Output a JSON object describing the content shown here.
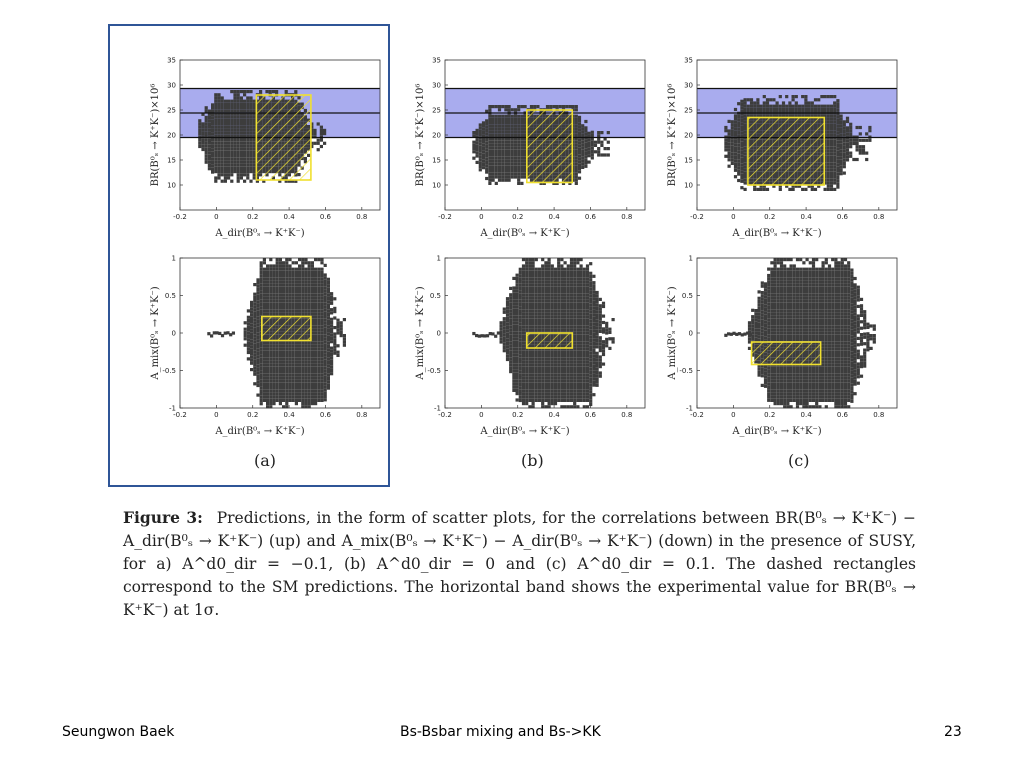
{
  "figure": {
    "caption_label": "Figure 3:",
    "caption_text": "Predictions, in the form of scatter plots, for the correlations between BR(B⁰ₛ → K⁺K⁻) − A_dir(B⁰ₛ → K⁺K⁻) (up) and A_mix(B⁰ₛ → K⁺K⁻) − A_dir(B⁰ₛ → K⁺K⁻) (down) in the presence of SUSY, for a) A^d0_dir = −0.1, (b) A^d0_dir = 0 and (c) A^d0_dir = 0.1. The dashed rectangles correspond to the SM predictions. The horizontal band shows the experimental value for BR(B⁰ₛ → K⁺K⁻) at 1σ.",
    "subfigure_labels": [
      "(a)",
      "(b)",
      "(c)"
    ]
  },
  "footer": {
    "author": "Seungwon Baek",
    "title": "Bs-Bsbar mixing and Bs->KK",
    "page": "23"
  },
  "colors": {
    "scatter": "#3d3d3d",
    "band": "#a9acee",
    "sm_rect": "#f0e030",
    "highlight_border": "#2f5597"
  },
  "chart_data": [
    {
      "type": "scatter",
      "panel": "a-top",
      "xlabel": "A_dir(B⁰ₛ → K⁺K⁻)",
      "ylabel": "BR(B⁰ₛ → K⁺K⁻)×10⁶",
      "xlim": [
        -0.2,
        0.9
      ],
      "ylim": [
        5,
        35
      ],
      "xticks": [
        "-0.2",
        "0",
        "0.2",
        "0.4",
        "0.6",
        "0.8"
      ],
      "yticks": [
        "10",
        "15",
        "20",
        "25",
        "30",
        "35"
      ],
      "band": [
        19.5,
        29.3
      ],
      "band_center": 24.4,
      "sm_rect": {
        "x": [
          0.22,
          0.52
        ],
        "y": [
          11,
          28
        ]
      },
      "region": {
        "x_min": -0.1,
        "x_max": 0.6,
        "y_min": 11,
        "y_max": 29
      }
    },
    {
      "type": "scatter",
      "panel": "b-top",
      "xlabel": "A_dir(B⁰ₛ → K⁺K⁻)",
      "ylabel": "BR(B⁰ₛ → K⁺K⁻)×10⁶",
      "xlim": [
        -0.2,
        0.9
      ],
      "ylim": [
        5,
        35
      ],
      "xticks": [
        "-0.2",
        "0",
        "0.2",
        "0.4",
        "0.6",
        "0.8"
      ],
      "yticks": [
        "10",
        "15",
        "20",
        "25",
        "30",
        "35"
      ],
      "band": [
        19.5,
        29.3
      ],
      "band_center": 24.4,
      "sm_rect": {
        "x": [
          0.25,
          0.5
        ],
        "y": [
          10.5,
          25
        ]
      },
      "region": {
        "x_min": -0.05,
        "x_max": 0.7,
        "y_min": 10,
        "y_max": 26
      }
    },
    {
      "type": "scatter",
      "panel": "c-top",
      "xlabel": "A_dir(B⁰ₛ → K⁺K⁻)",
      "ylabel": "BR(B⁰ₛ → K⁺K⁻)×10⁶",
      "xlim": [
        -0.2,
        0.9
      ],
      "ylim": [
        5,
        35
      ],
      "xticks": [
        "-0.2",
        "0",
        "0.2",
        "0.4",
        "0.6",
        "0.8"
      ],
      "yticks": [
        "10",
        "15",
        "20",
        "25",
        "30",
        "35"
      ],
      "band": [
        19.5,
        29.3
      ],
      "band_center": 24.4,
      "sm_rect": {
        "x": [
          0.08,
          0.5
        ],
        "y": [
          10,
          23.5
        ]
      },
      "region": {
        "x_min": -0.05,
        "x_max": 0.75,
        "y_min": 9,
        "y_max": 28
      }
    },
    {
      "type": "scatter",
      "panel": "a-bottom",
      "xlabel": "A_dir(B⁰ₛ → K⁺K⁻)",
      "ylabel": "A_mix(B⁰ₛ → K⁺K⁻)",
      "xlim": [
        -0.2,
        0.9
      ],
      "ylim": [
        -1,
        1
      ],
      "xticks": [
        "-0.2",
        "0",
        "0.2",
        "0.4",
        "0.6",
        "0.8"
      ],
      "yticks": [
        "-1",
        "-0.5",
        "0",
        "0.5",
        "1"
      ],
      "sm_rect": {
        "x": [
          0.25,
          0.52
        ],
        "y": [
          -0.1,
          0.22
        ]
      },
      "region": {
        "x_min": 0.15,
        "x_max": 0.7,
        "y_min": -1,
        "y_max": 1
      }
    },
    {
      "type": "scatter",
      "panel": "b-bottom",
      "xlabel": "A_dir(B⁰ₛ → K⁺K⁻)",
      "ylabel": "A_mix(B⁰ₛ → K⁺K⁻)",
      "xlim": [
        -0.2,
        0.9
      ],
      "ylim": [
        -1,
        1
      ],
      "xticks": [
        "-0.2",
        "0",
        "0.2",
        "0.4",
        "0.6",
        "0.8"
      ],
      "yticks": [
        "-1",
        "-0.5",
        "0",
        "0.5",
        "1"
      ],
      "sm_rect": {
        "x": [
          0.25,
          0.5
        ],
        "y": [
          -0.2,
          0.0
        ]
      },
      "region": {
        "x_min": 0.1,
        "x_max": 0.72,
        "y_min": -1,
        "y_max": 1
      }
    },
    {
      "type": "scatter",
      "panel": "c-bottom",
      "xlabel": "A_dir(B⁰ₛ → K⁺K⁻)",
      "ylabel": "A_mix(B⁰ₛ → K⁺K⁻)",
      "xlim": [
        -0.2,
        0.9
      ],
      "ylim": [
        -1,
        1
      ],
      "xticks": [
        "-0.2",
        "0",
        "0.2",
        "0.4",
        "0.6",
        "0.8"
      ],
      "yticks": [
        "-1",
        "-0.5",
        "0",
        "0.5",
        "1"
      ],
      "sm_rect": {
        "x": [
          0.1,
          0.48
        ],
        "y": [
          -0.42,
          -0.12
        ]
      },
      "region": {
        "x_min": 0.08,
        "x_max": 0.78,
        "y_min": -1,
        "y_max": 1
      }
    }
  ]
}
